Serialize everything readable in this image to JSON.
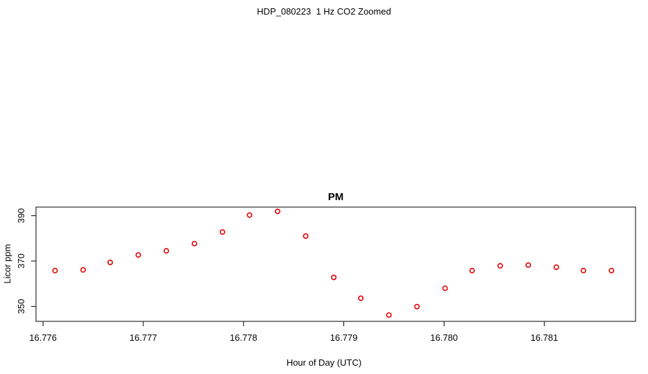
{
  "page": {
    "title": "HDP_080223  1 Hz CO2 Zoomed"
  },
  "chart_data": {
    "type": "scatter",
    "title": "PM",
    "xlabel": "Hour of Day (UTC)",
    "ylabel": "Licor ppm",
    "xlim": [
      16.77593,
      16.78191
    ],
    "ylim": [
      343.4,
      393.8
    ],
    "xticks": [
      16.776,
      16.777,
      16.778,
      16.779,
      16.78,
      16.781
    ],
    "xtick_labels": [
      "16.776",
      "16.777",
      "16.778",
      "16.779",
      "16.780",
      "16.781"
    ],
    "yticks": [
      350,
      370,
      390
    ],
    "ytick_labels": [
      "350",
      "370",
      "390"
    ],
    "grid": false,
    "marker": "open-circle",
    "color": "#e00000",
    "series": [
      {
        "x": [
          16.77612,
          16.7764,
          16.77667,
          16.77695,
          16.77723,
          16.77751,
          16.77779,
          16.77806,
          16.77834,
          16.77862,
          16.7789,
          16.77917,
          16.77945,
          16.77973,
          16.78001,
          16.78028,
          16.78056,
          16.78084,
          16.78112,
          16.78139,
          16.78167
        ],
        "y": [
          365.8,
          366.1,
          369.4,
          372.7,
          374.5,
          377.7,
          382.8,
          390.3,
          391.9,
          381.0,
          362.8,
          353.6,
          346.2,
          349.9,
          358.0,
          365.8,
          367.9,
          368.2,
          367.3,
          365.8,
          365.8
        ]
      }
    ]
  }
}
